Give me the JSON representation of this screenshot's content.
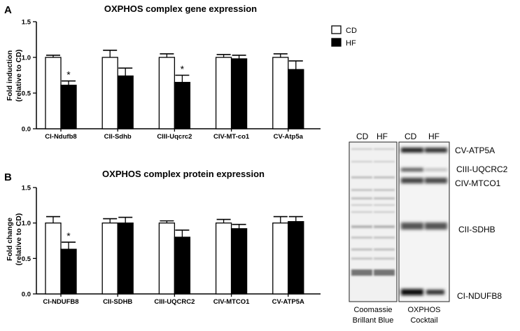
{
  "colors": {
    "cd_fill": "#ffffff",
    "hf_fill": "#000000",
    "stroke": "#000000",
    "blot_bg": "#f2f2f2",
    "band": "#2a2a2a",
    "faint_band": "#b5b5b5"
  },
  "legend": {
    "items": [
      {
        "label": "CD",
        "color": "#ffffff"
      },
      {
        "label": "HF",
        "color": "#000000"
      }
    ]
  },
  "chart_data": [
    {
      "panel": "A",
      "type": "bar",
      "title": "OXPHOS complex gene expression",
      "ylabel": "Fold  induction",
      "ylabel2": "(relative to CD)",
      "ylim": [
        0,
        1.5
      ],
      "yticks": [
        "0.0",
        "0.5",
        "1.0",
        "1.5"
      ],
      "categories": [
        "CI-Ndufb8",
        "CII-Sdhb",
        "CIII-Uqcrc2",
        "CIV-MT-co1",
        "CV-Atp5a"
      ],
      "series": [
        {
          "name": "CD",
          "values": [
            1.0,
            1.0,
            1.0,
            1.0,
            1.0
          ],
          "errors": [
            0.03,
            0.1,
            0.05,
            0.04,
            0.05
          ]
        },
        {
          "name": "HF",
          "values": [
            0.61,
            0.74,
            0.65,
            0.98,
            0.83
          ],
          "errors": [
            0.06,
            0.11,
            0.1,
            0.05,
            0.12
          ]
        }
      ],
      "significance": [
        "*",
        "",
        "*",
        "",
        ""
      ]
    },
    {
      "panel": "B",
      "type": "bar",
      "title": "OXPHOS complex protein expression",
      "ylabel": "Fold  change",
      "ylabel2": "(relative to CD)",
      "ylim": [
        0,
        1.5
      ],
      "yticks": [
        "0.0",
        "0.5",
        "1.0",
        "1.5"
      ],
      "categories": [
        "CI-NDUFB8",
        "CII-SDHB",
        "CIII-UQCRC2",
        "CIV-MTCO1",
        "CV-ATP5A"
      ],
      "series": [
        {
          "name": "CD",
          "values": [
            1.0,
            1.0,
            1.0,
            1.0,
            1.0
          ],
          "errors": [
            0.09,
            0.06,
            0.03,
            0.05,
            0.09
          ]
        },
        {
          "name": "HF",
          "values": [
            0.63,
            1.0,
            0.8,
            0.92,
            1.02
          ],
          "errors": [
            0.1,
            0.08,
            0.1,
            0.06,
            0.07
          ]
        }
      ],
      "significance": [
        "*",
        "",
        "",
        "",
        ""
      ]
    }
  ],
  "blot": {
    "left_headers": [
      "CD",
      "HF"
    ],
    "right_headers": [
      "CD",
      "HF"
    ],
    "band_labels": [
      "CV-ATP5A",
      "CIII-UQCRC2",
      "CIV-MTCO1",
      "CII-SDHB",
      "CI-NDUFB8"
    ],
    "caption_left": [
      "Coomassie",
      "Brillant Blue"
    ],
    "caption_right": [
      "OXPHOS",
      "Cocktail"
    ]
  }
}
